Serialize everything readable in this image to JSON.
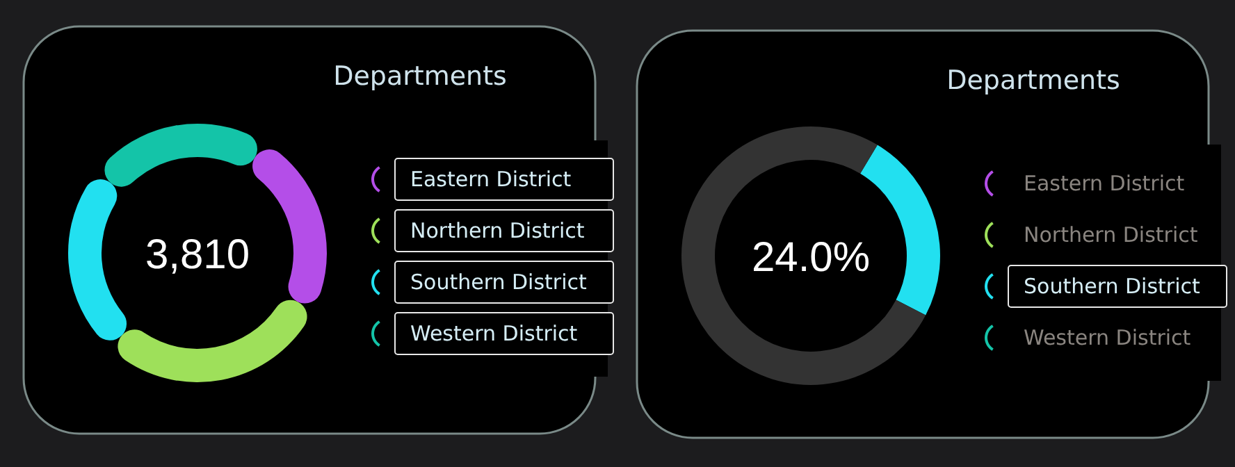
{
  "chart_data": [
    {
      "type": "donut",
      "title": "Departments",
      "categories": [
        "Eastern District",
        "Northern District",
        "Southern District",
        "Western District"
      ],
      "values": [
        23.6,
        29.6,
        24.0,
        22.8
      ],
      "colors": [
        "#b44ee8",
        "#9ee05a",
        "#22e0f0",
        "#14c4a8"
      ],
      "legend": "right",
      "annotations": [
        "3,810"
      ]
    },
    {
      "type": "donut",
      "title": "Departments",
      "categories": [
        "Eastern District",
        "Northern District",
        "Southern District",
        "Western District",
        null
      ],
      "values": [
        0,
        0,
        24.0,
        0,
        76.0
      ],
      "colors": [
        "#b44ee8",
        "#9ee05a",
        "#22e0f0",
        "#14c4a8",
        "#333333"
      ],
      "legend": "right",
      "annotations": [
        "24.0%"
      ]
    }
  ]
}
